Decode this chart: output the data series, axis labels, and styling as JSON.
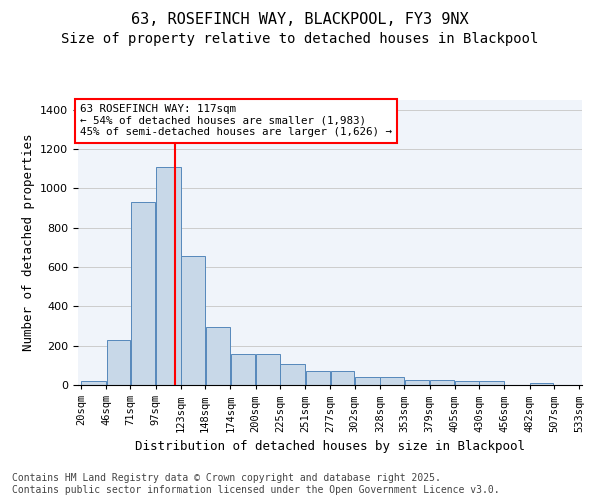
{
  "title_line1": "63, ROSEFINCH WAY, BLACKPOOL, FY3 9NX",
  "title_line2": "Size of property relative to detached houses in Blackpool",
  "xlabel": "Distribution of detached houses by size in Blackpool",
  "ylabel": "Number of detached properties",
  "bar_color": "#c8d8e8",
  "bar_edge_color": "#5588bb",
  "background_color": "#f0f4fa",
  "grid_color": "#cccccc",
  "vline_x": 117,
  "vline_color": "red",
  "annotation_text": "63 ROSEFINCH WAY: 117sqm\n← 54% of detached houses are smaller (1,983)\n45% of semi-detached houses are larger (1,626) →",
  "annotation_box_color": "white",
  "annotation_box_edge": "red",
  "footnote": "Contains HM Land Registry data © Crown copyright and database right 2025.\nContains public sector information licensed under the Open Government Licence v3.0.",
  "bin_edges": [
    20,
    46,
    71,
    97,
    123,
    148,
    174,
    200,
    225,
    251,
    277,
    302,
    328,
    353,
    379,
    405,
    430,
    456,
    482,
    507,
    533
  ],
  "bar_heights": [
    20,
    230,
    930,
    1110,
    655,
    295,
    160,
    160,
    105,
    70,
    70,
    40,
    40,
    25,
    25,
    20,
    20,
    0,
    10,
    0
  ],
  "ylim": [
    0,
    1450
  ],
  "yticks": [
    0,
    200,
    400,
    600,
    800,
    1000,
    1200,
    1400
  ],
  "title_fontsize": 11,
  "subtitle_fontsize": 10,
  "tick_fontsize": 7.5,
  "label_fontsize": 9,
  "footnote_fontsize": 7
}
